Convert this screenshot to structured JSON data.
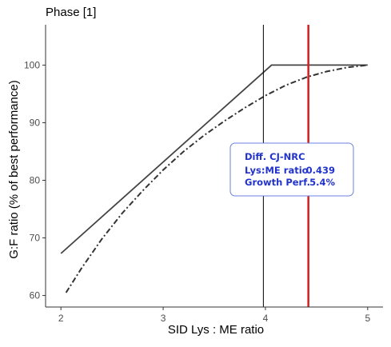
{
  "chart_data": {
    "type": "line",
    "title": "Phase [1]",
    "xlabel": "SID Lys : ME ratio",
    "ylabel": "G:F ratio (% of best performance)",
    "xlim": [
      1.85,
      5.15
    ],
    "ylim": [
      58,
      107
    ],
    "x_ticks": [
      2,
      3,
      4,
      5
    ],
    "y_ticks": [
      60,
      70,
      80,
      90,
      100
    ],
    "grid": false,
    "series": [
      {
        "style": "solid",
        "color": "#444444",
        "x": [
          2.0,
          4.06,
          5.0
        ],
        "y": [
          67.3,
          100,
          100
        ]
      },
      {
        "style": "dashdot",
        "color": "#333333",
        "x": [
          2.05,
          2.2,
          2.4,
          2.6,
          2.8,
          3.0,
          3.2,
          3.4,
          3.6,
          3.8,
          4.0,
          4.2,
          4.4,
          4.6,
          4.8,
          5.0
        ],
        "y": [
          60.5,
          64.7,
          69.8,
          74.3,
          78.2,
          81.8,
          85.0,
          87.8,
          90.3,
          92.6,
          94.7,
          96.5,
          97.9,
          98.9,
          99.6,
          100.0
        ]
      }
    ],
    "vlines": [
      {
        "x": 3.98,
        "color": "#000000"
      },
      {
        "x": 4.42,
        "color": "#d41f1f"
      }
    ],
    "annotation": {
      "title": "Diff. CJ-NRC",
      "rows": [
        {
          "label": "Lys:ME ratio",
          "value": "0.439"
        },
        {
          "label": "Growth Perf.",
          "value": "5.4%"
        }
      ],
      "border_color": "#6b7fe0",
      "text_color": "#2233cc"
    }
  }
}
